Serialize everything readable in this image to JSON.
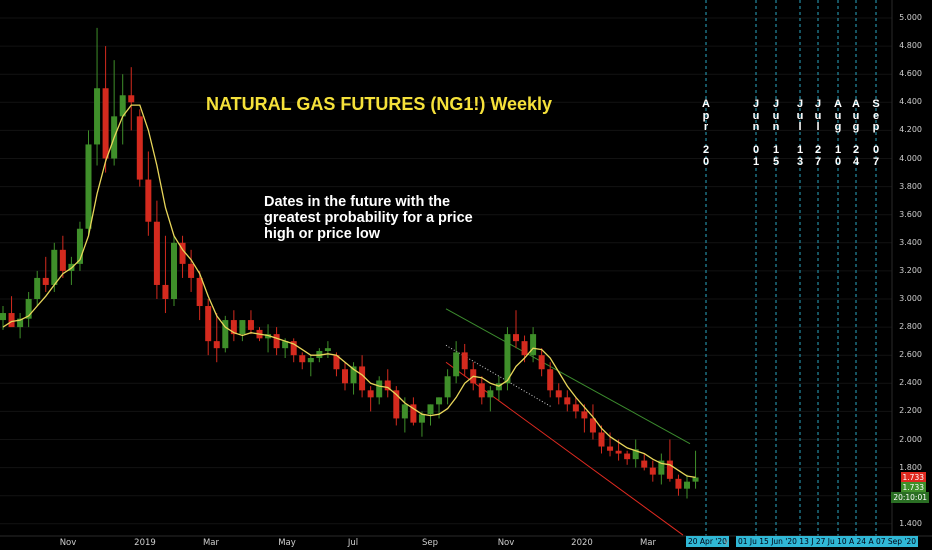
{
  "title": "NATURAL GAS FUTURES (NG1!) Weekly",
  "annotation": "Dates in the future with the greatest probability for a price high or price low",
  "future_dates": [
    {
      "chars": [
        "A",
        "p",
        "r",
        "",
        "2",
        "0"
      ]
    },
    {
      "chars": [
        "J",
        "u",
        "n",
        "",
        "0",
        "1"
      ]
    },
    {
      "chars": [
        "J",
        "u",
        "n",
        "",
        "1",
        "5"
      ]
    },
    {
      "chars": [
        "J",
        "u",
        "l",
        "",
        "1",
        "3"
      ]
    },
    {
      "chars": [
        "J",
        "u",
        "l",
        "",
        "2",
        "7"
      ]
    },
    {
      "chars": [
        "A",
        "u",
        "g",
        "",
        "1",
        "0"
      ]
    },
    {
      "chars": [
        "A",
        "u",
        "g",
        "",
        "2",
        "4"
      ]
    },
    {
      "chars": [
        "S",
        "e",
        "p",
        "",
        "0",
        "7"
      ]
    }
  ],
  "x_labels": [
    "Nov",
    "2019",
    "Mar",
    "May",
    "Jul",
    "Sep",
    "Nov",
    "2020",
    "Mar"
  ],
  "y_labels": [
    "5.000",
    "4.800",
    "4.600",
    "4.400",
    "4.200",
    "4.000",
    "3.800",
    "3.600",
    "3.400",
    "3.200",
    "3.000",
    "2.800",
    "2.600",
    "2.400",
    "2.200",
    "2.000",
    "1.800",
    "1.600",
    "1.400"
  ],
  "price_badges": {
    "last": "1.733",
    "ma": "1.733",
    "timer": "20:10:01"
  },
  "date_badges": {
    "first": "20 Apr '20",
    "row": "01 Ju 15 Jun '20 13 J 27 Ju 10 A 24 A 07 Sep '20",
    "cut": "y"
  },
  "colors": {
    "up": "#3f8f2a",
    "down": "#d42a1e",
    "ma": "#e8d65a",
    "trend_upper": "#3c8c2e",
    "trend_lower": "#e02a20",
    "vline": "#2aa6c2",
    "badge": "#30b8d6"
  },
  "chart_data": {
    "type": "candlestick",
    "title": "NATURAL GAS FUTURES (NG1!) Weekly",
    "interval": "weekly",
    "ylim": [
      1.35,
      5.05
    ],
    "ohlc": [
      [
        2.85,
        2.95,
        2.78,
        2.9
      ],
      [
        2.9,
        3.02,
        2.83,
        2.8
      ],
      [
        2.8,
        2.9,
        2.72,
        2.86
      ],
      [
        2.86,
        3.05,
        2.8,
        3.0
      ],
      [
        3.0,
        3.2,
        2.95,
        3.15
      ],
      [
        3.15,
        3.3,
        3.05,
        3.1
      ],
      [
        3.1,
        3.4,
        3.05,
        3.35
      ],
      [
        3.35,
        3.45,
        3.15,
        3.2
      ],
      [
        3.2,
        3.3,
        3.1,
        3.25
      ],
      [
        3.25,
        3.55,
        3.2,
        3.5
      ],
      [
        3.5,
        4.2,
        3.45,
        4.1
      ],
      [
        4.1,
        4.93,
        3.95,
        4.5
      ],
      [
        4.5,
        4.8,
        3.9,
        4.0
      ],
      [
        4.0,
        4.7,
        3.95,
        4.3
      ],
      [
        4.3,
        4.6,
        4.1,
        4.45
      ],
      [
        4.45,
        4.65,
        4.2,
        4.4
      ],
      [
        4.3,
        4.35,
        3.8,
        3.85
      ],
      [
        3.85,
        4.05,
        3.45,
        3.55
      ],
      [
        3.55,
        3.7,
        3.0,
        3.1
      ],
      [
        3.1,
        3.45,
        2.9,
        3.0
      ],
      [
        3.0,
        3.45,
        2.95,
        3.4
      ],
      [
        3.4,
        3.45,
        3.15,
        3.25
      ],
      [
        3.25,
        3.35,
        3.05,
        3.15
      ],
      [
        3.15,
        3.2,
        2.85,
        2.95
      ],
      [
        2.95,
        3.0,
        2.6,
        2.7
      ],
      [
        2.7,
        2.9,
        2.55,
        2.65
      ],
      [
        2.65,
        2.88,
        2.62,
        2.85
      ],
      [
        2.85,
        2.92,
        2.7,
        2.75
      ],
      [
        2.75,
        2.85,
        2.7,
        2.85
      ],
      [
        2.85,
        2.92,
        2.75,
        2.78
      ],
      [
        2.78,
        2.8,
        2.7,
        2.72
      ],
      [
        2.72,
        2.82,
        2.62,
        2.75
      ],
      [
        2.75,
        2.8,
        2.6,
        2.65
      ],
      [
        2.65,
        2.72,
        2.58,
        2.7
      ],
      [
        2.7,
        2.72,
        2.55,
        2.6
      ],
      [
        2.6,
        2.62,
        2.5,
        2.55
      ],
      [
        2.55,
        2.6,
        2.45,
        2.58
      ],
      [
        2.58,
        2.65,
        2.55,
        2.63
      ],
      [
        2.63,
        2.7,
        2.58,
        2.65
      ],
      [
        2.6,
        2.62,
        2.45,
        2.5
      ],
      [
        2.5,
        2.55,
        2.35,
        2.4
      ],
      [
        2.4,
        2.55,
        2.32,
        2.52
      ],
      [
        2.52,
        2.6,
        2.3,
        2.35
      ],
      [
        2.35,
        2.38,
        2.2,
        2.3
      ],
      [
        2.3,
        2.45,
        2.25,
        2.42
      ],
      [
        2.42,
        2.5,
        2.3,
        2.35
      ],
      [
        2.35,
        2.38,
        2.1,
        2.15
      ],
      [
        2.15,
        2.3,
        2.05,
        2.25
      ],
      [
        2.25,
        2.3,
        2.1,
        2.12
      ],
      [
        2.12,
        2.2,
        2.02,
        2.18
      ],
      [
        2.18,
        2.25,
        2.1,
        2.25
      ],
      [
        2.25,
        2.3,
        2.15,
        2.3
      ],
      [
        2.3,
        2.5,
        2.25,
        2.45
      ],
      [
        2.45,
        2.7,
        2.4,
        2.62
      ],
      [
        2.62,
        2.68,
        2.45,
        2.5
      ],
      [
        2.5,
        2.55,
        2.35,
        2.4
      ],
      [
        2.4,
        2.45,
        2.25,
        2.3
      ],
      [
        2.3,
        2.38,
        2.2,
        2.35
      ],
      [
        2.35,
        2.45,
        2.28,
        2.4
      ],
      [
        2.4,
        2.8,
        2.35,
        2.75
      ],
      [
        2.75,
        2.92,
        2.65,
        2.7
      ],
      [
        2.7,
        2.74,
        2.55,
        2.6
      ],
      [
        2.6,
        2.8,
        2.55,
        2.75
      ],
      [
        2.6,
        2.65,
        2.45,
        2.5
      ],
      [
        2.5,
        2.55,
        2.3,
        2.35
      ],
      [
        2.35,
        2.4,
        2.25,
        2.3
      ],
      [
        2.3,
        2.35,
        2.2,
        2.25
      ],
      [
        2.25,
        2.3,
        2.15,
        2.2
      ],
      [
        2.2,
        2.25,
        2.05,
        2.15
      ],
      [
        2.15,
        2.25,
        2.0,
        2.05
      ],
      [
        2.05,
        2.1,
        1.9,
        1.95
      ],
      [
        1.95,
        2.05,
        1.88,
        1.92
      ],
      [
        1.92,
        2.0,
        1.85,
        1.9
      ],
      [
        1.9,
        1.92,
        1.82,
        1.86
      ],
      [
        1.86,
        2.0,
        1.8,
        1.93
      ],
      [
        1.85,
        1.9,
        1.78,
        1.8
      ],
      [
        1.8,
        1.85,
        1.7,
        1.75
      ],
      [
        1.75,
        1.9,
        1.68,
        1.85
      ],
      [
        1.85,
        2.0,
        1.7,
        1.72
      ],
      [
        1.72,
        1.75,
        1.6,
        1.65
      ],
      [
        1.65,
        1.75,
        1.58,
        1.7
      ],
      [
        1.7,
        1.92,
        1.65,
        1.73
      ]
    ],
    "moving_average": [
      2.8,
      2.84,
      2.85,
      2.88,
      2.95,
      3.02,
      3.1,
      3.18,
      3.22,
      3.28,
      3.45,
      3.75,
      3.98,
      4.15,
      4.3,
      4.38,
      4.38,
      4.2,
      3.95,
      3.65,
      3.45,
      3.35,
      3.28,
      3.18,
      3.02,
      2.88,
      2.8,
      2.76,
      2.74,
      2.76,
      2.75,
      2.74,
      2.72,
      2.7,
      2.68,
      2.64,
      2.6,
      2.6,
      2.61,
      2.6,
      2.55,
      2.5,
      2.46,
      2.4,
      2.38,
      2.37,
      2.32,
      2.26,
      2.22,
      2.18,
      2.17,
      2.18,
      2.22,
      2.3,
      2.4,
      2.45,
      2.44,
      2.4,
      2.38,
      2.42,
      2.52,
      2.58,
      2.65,
      2.64,
      2.58,
      2.48,
      2.38,
      2.3,
      2.23,
      2.16,
      2.08,
      2.02,
      1.98,
      1.94,
      1.92,
      1.9,
      1.86,
      1.83,
      1.82,
      1.78,
      1.74,
      1.73
    ],
    "trend_lines": [
      {
        "from": [
          3.16,
          2.93
        ],
        "to": [
          4.15,
          1.97
        ]
      },
      {
        "from": [
          3.16,
          2.55
        ],
        "to": [
          4.15,
          1.35
        ]
      }
    ]
  }
}
